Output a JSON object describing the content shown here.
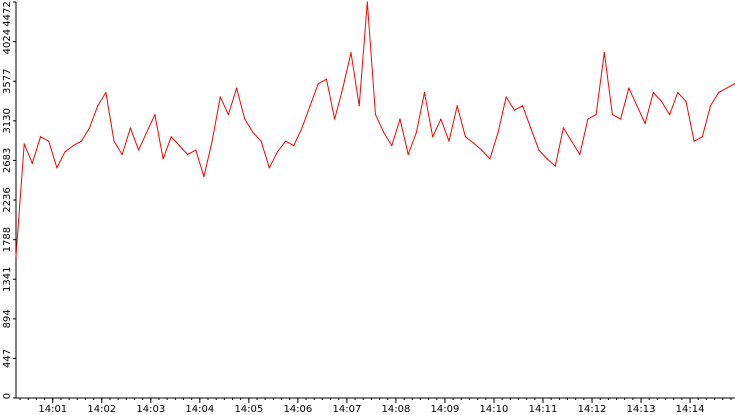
{
  "chart_data": {
    "type": "line",
    "title": "",
    "xlabel": "",
    "ylabel": "",
    "ylim": [
      0,
      4472
    ],
    "y_ticks": [
      "0",
      "447",
      "894",
      "1341",
      "1788",
      "2236",
      "2683",
      "3130",
      "3577",
      "4024",
      "4472"
    ],
    "x_ticks": [
      "14:01",
      "14:02",
      "14:03",
      "14:04",
      "14:05",
      "14:06",
      "14:07",
      "14:08",
      "14:09",
      "14:10",
      "14:11",
      "14:12",
      "14:13",
      "14:14"
    ],
    "xlim": [
      "14:00:15",
      "14:14:55"
    ],
    "grid": false,
    "series": [
      {
        "color": "#ff0000",
        "x": [
          "14:00:15",
          "14:00:25",
          "14:00:35",
          "14:00:45",
          "14:00:55",
          "14:01:05",
          "14:01:15",
          "14:01:25",
          "14:01:35",
          "14:01:45",
          "14:01:55",
          "14:02:05",
          "14:02:15",
          "14:02:25",
          "14:02:35",
          "14:02:45",
          "14:02:55",
          "14:03:05",
          "14:03:15",
          "14:03:25",
          "14:03:35",
          "14:03:45",
          "14:03:55",
          "14:04:05",
          "14:04:15",
          "14:04:25",
          "14:04:35",
          "14:04:45",
          "14:04:55",
          "14:05:05",
          "14:05:15",
          "14:05:25",
          "14:05:35",
          "14:05:45",
          "14:05:55",
          "14:06:05",
          "14:06:15",
          "14:06:25",
          "14:06:35",
          "14:06:45",
          "14:06:55",
          "14:07:05",
          "14:07:15",
          "14:07:25",
          "14:07:35",
          "14:07:45",
          "14:07:55",
          "14:08:05",
          "14:08:15",
          "14:08:25",
          "14:08:35",
          "14:08:45",
          "14:08:55",
          "14:09:05",
          "14:09:15",
          "14:09:25",
          "14:09:35",
          "14:09:45",
          "14:09:55",
          "14:10:05",
          "14:10:15",
          "14:10:25",
          "14:10:35",
          "14:10:45",
          "14:10:55",
          "14:11:05",
          "14:11:15",
          "14:11:25",
          "14:11:35",
          "14:11:45",
          "14:11:55",
          "14:12:05",
          "14:12:15",
          "14:12:25",
          "14:12:35",
          "14:12:45",
          "14:12:55",
          "14:13:05",
          "14:13:15",
          "14:13:25",
          "14:13:35",
          "14:13:45",
          "14:13:55",
          "14:14:05",
          "14:14:15",
          "14:14:25",
          "14:14:35",
          "14:14:45",
          "14:14:55"
        ],
        "values": [
          1600,
          2870,
          2650,
          2950,
          2900,
          2600,
          2780,
          2850,
          2900,
          3050,
          3300,
          3450,
          2900,
          2750,
          3050,
          2800,
          3000,
          3200,
          2700,
          2950,
          2850,
          2750,
          2800,
          2500,
          2900,
          3400,
          3200,
          3500,
          3150,
          3000,
          2900,
          2600,
          2780,
          2900,
          2850,
          3050,
          3300,
          3550,
          3600,
          3150,
          3500,
          3900,
          3300,
          4472,
          3200,
          3000,
          2850,
          3150,
          2750,
          3000,
          3450,
          2950,
          3150,
          2900,
          3300,
          2950,
          2880,
          2800,
          2700,
          3000,
          3400,
          3250,
          3300,
          3050,
          2800,
          2700,
          2620,
          3050,
          2900,
          2750,
          3150,
          3200,
          3900,
          3200,
          3150,
          3500,
          3300,
          3100,
          3450,
          3350,
          3200,
          3450,
          3350,
          2900,
          2950,
          3300,
          3450,
          3500,
          3550
        ]
      }
    ]
  }
}
